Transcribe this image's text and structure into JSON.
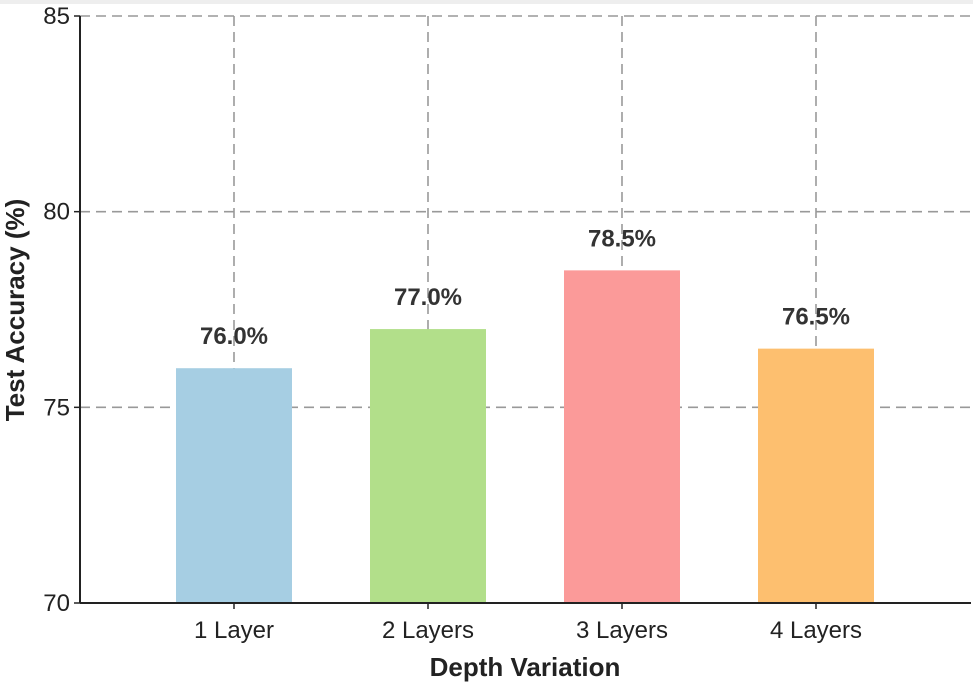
{
  "chart_data": {
    "type": "bar",
    "categories": [
      "1 Layer",
      "2 Layers",
      "3 Layers",
      "4 Layers"
    ],
    "values": [
      76.0,
      77.0,
      78.5,
      76.5
    ],
    "data_labels": [
      "76.0%",
      "77.0%",
      "78.5%",
      "76.5%"
    ],
    "bar_colors": [
      "#a6cee3",
      "#b2df8a",
      "#fb9a99",
      "#fdbf6f"
    ],
    "title": "",
    "xlabel": "Depth Variation",
    "ylabel": "Test Accuracy (%)",
    "ylim": [
      70,
      85
    ],
    "yticks": [
      70,
      75,
      80,
      85
    ],
    "ytick_labels": [
      "70",
      "75",
      "80",
      "85"
    ],
    "grid": true,
    "grid_style": "dashed",
    "legend": false
  }
}
